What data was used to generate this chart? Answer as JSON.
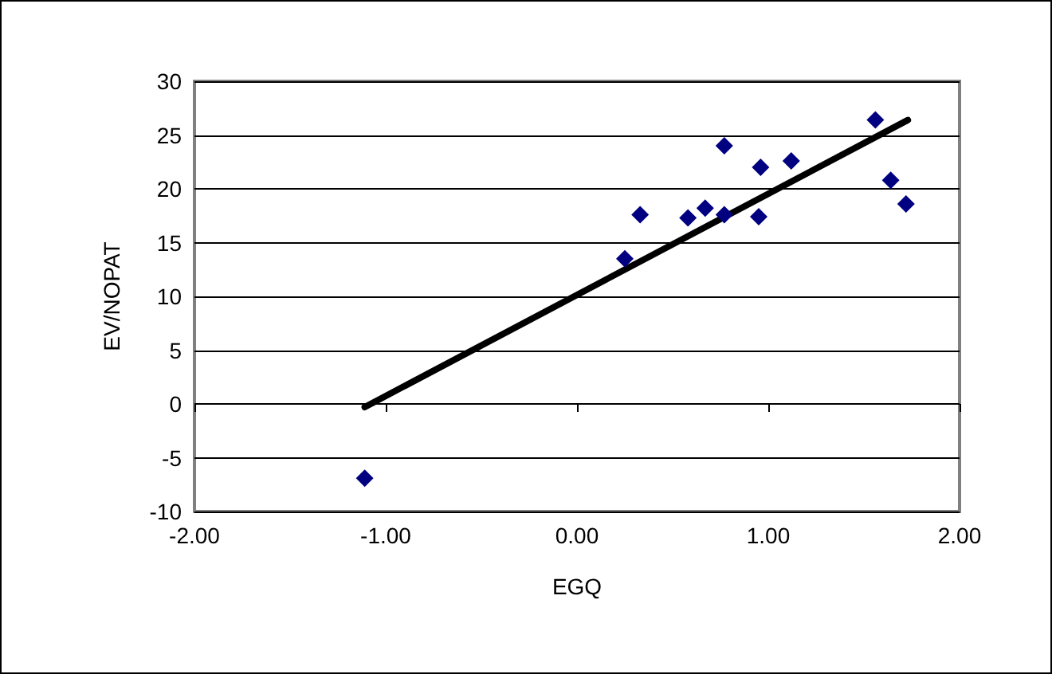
{
  "chart_data": {
    "type": "scatter",
    "xlabel": "EGQ",
    "ylabel": "EV/NOPAT",
    "marker": "diamond",
    "grid": "y",
    "xlim": [
      -2,
      2
    ],
    "xticks": [
      {
        "value": -2,
        "label": "-2.00"
      },
      {
        "value": -1,
        "label": "-1.00"
      },
      {
        "value": 0,
        "label": "0.00"
      },
      {
        "value": 1,
        "label": "1.00"
      },
      {
        "value": 2,
        "label": "2.00"
      }
    ],
    "ylim": [
      -10,
      30
    ],
    "yticks": [
      -10,
      -5,
      0,
      5,
      10,
      15,
      20,
      25,
      30
    ],
    "series": [
      {
        "color": "#000080",
        "x": [
          1.56,
          0.77,
          0.96,
          1.12,
          1.64,
          1.72,
          0.33,
          0.58,
          0.67,
          0.77,
          0.95,
          0.25,
          -1.11
        ],
        "values": [
          26.4,
          24.0,
          22.0,
          22.6,
          20.8,
          18.6,
          17.6,
          17.3,
          18.2,
          17.6,
          17.4,
          13.5,
          -6.9
        ]
      },
      {
        "type": "line",
        "color": "#000000",
        "marker": "none",
        "x": [
          -1.11,
          1.73
        ],
        "values": [
          -0.3,
          26.4
        ]
      }
    ]
  }
}
